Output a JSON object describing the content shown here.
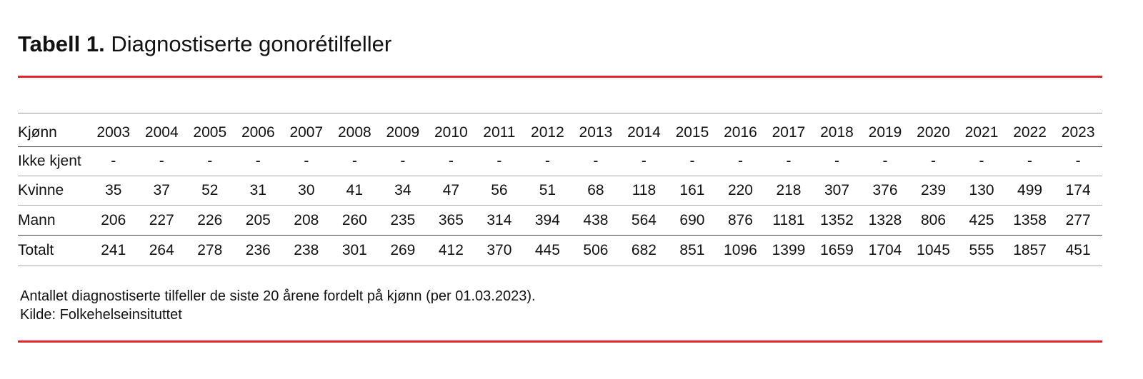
{
  "header": {
    "label": "Tabell 1.",
    "title": "Diagnostiserte gonorétilfeller"
  },
  "table": {
    "columns": [
      "Kjønn",
      "2003",
      "2004",
      "2005",
      "2006",
      "2007",
      "2008",
      "2009",
      "2010",
      "2011",
      "2012",
      "2013",
      "2014",
      "2015",
      "2016",
      "2017",
      "2018",
      "2019",
      "2020",
      "2021",
      "2022",
      "2023"
    ],
    "rows": [
      [
        "Ikke kjent",
        "-",
        "-",
        "-",
        "-",
        "-",
        "-",
        "-",
        "-",
        "-",
        "-",
        "-",
        "-",
        "-",
        "-",
        "-",
        "-",
        "-",
        "-",
        "-",
        "-",
        "-"
      ],
      [
        "Kvinne",
        35,
        37,
        52,
        31,
        30,
        41,
        34,
        47,
        56,
        51,
        68,
        118,
        161,
        220,
        218,
        307,
        376,
        239,
        130,
        499,
        174
      ],
      [
        "Mann",
        206,
        227,
        226,
        205,
        208,
        260,
        235,
        365,
        314,
        394,
        438,
        564,
        690,
        876,
        1181,
        1352,
        1328,
        806,
        425,
        1358,
        277
      ],
      [
        "Totalt",
        241,
        264,
        278,
        236,
        238,
        301,
        269,
        412,
        370,
        445,
        506,
        682,
        851,
        1096,
        1399,
        1659,
        1704,
        1045,
        555,
        1857,
        451
      ]
    ]
  },
  "caption": {
    "text": "Antallet diagnostiserte tilfeller de siste 20 årene fordelt på kjønn (per 01.03.2023).",
    "source": "Kilde: Folkehelseinsituttet"
  }
}
